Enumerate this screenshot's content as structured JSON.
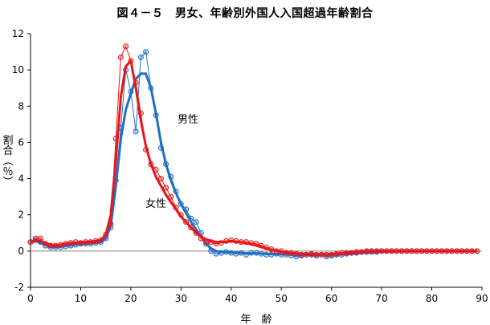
{
  "chart_data": {
    "type": "line",
    "title": "図４－５　男女、年齢別外国人入国超過年齢割合",
    "xlabel": "年　齢",
    "ylabel": "割合（％）",
    "xlim": [
      0,
      90
    ],
    "ylim": [
      -2,
      12
    ],
    "x_ticks": [
      "0",
      "10",
      "20",
      "30",
      "40",
      "50",
      "60",
      "70",
      "80",
      "90"
    ],
    "y_ticks": [
      "-2",
      "0",
      "2",
      "4",
      "6",
      "8",
      "10",
      "12"
    ],
    "annotations": {
      "male": "男性",
      "female": "女性"
    },
    "colors": {
      "male": "#1f6fc5",
      "female": "#e8161b"
    },
    "series": [
      {
        "name": "男性",
        "color": "#1f6fc5",
        "x": [
          0,
          1,
          2,
          3,
          4,
          5,
          6,
          7,
          8,
          9,
          10,
          11,
          12,
          13,
          14,
          15,
          16,
          17,
          18,
          19,
          20,
          21,
          22,
          23,
          24,
          25,
          26,
          27,
          28,
          29,
          30,
          31,
          32,
          33,
          34,
          35,
          36,
          37,
          38,
          39,
          40,
          41,
          42,
          43,
          44,
          45,
          46,
          47,
          48,
          49,
          50,
          51,
          52,
          53,
          54,
          55,
          56,
          57,
          58,
          59,
          60,
          61,
          62,
          63,
          64,
          65,
          66,
          67,
          68,
          69,
          70,
          71,
          72,
          73,
          74,
          75,
          76,
          77,
          78,
          79,
          80,
          81,
          82,
          83,
          84,
          85,
          86,
          87,
          88,
          89
        ],
        "values": [
          0.5,
          0.6,
          0.5,
          0.3,
          0.2,
          0.2,
          0.2,
          0.25,
          0.3,
          0.35,
          0.4,
          0.4,
          0.4,
          0.45,
          0.5,
          0.7,
          1.3,
          3.9,
          6.8,
          10.0,
          8.8,
          6.6,
          10.7,
          11.0,
          9.0,
          7.5,
          5.7,
          4.8,
          4.1,
          3.3,
          2.6,
          2.3,
          1.8,
          1.6,
          1.0,
          0.4,
          0.0,
          -0.15,
          -0.1,
          -0.05,
          -0.1,
          -0.15,
          -0.1,
          -0.2,
          -0.1,
          -0.1,
          -0.15,
          -0.2,
          -0.2,
          -0.15,
          -0.2,
          -0.2,
          -0.25,
          -0.3,
          -0.25,
          -0.2,
          -0.2,
          -0.25,
          -0.2,
          -0.3,
          -0.25,
          -0.2,
          -0.2,
          -0.15,
          -0.1,
          -0.1,
          -0.05,
          -0.05,
          -0.05,
          -0.05,
          0.0,
          0.0,
          0.0,
          0.0,
          0.0,
          0.0,
          0.0,
          0.0,
          0.0,
          0.0,
          0.0,
          0.0,
          0.0,
          0.0,
          0.0,
          0.0,
          0.0,
          0.0,
          0.0,
          0.0
        ],
        "trend": [
          0.5,
          0.55,
          0.45,
          0.35,
          0.25,
          0.22,
          0.24,
          0.28,
          0.32,
          0.36,
          0.38,
          0.4,
          0.42,
          0.46,
          0.5,
          0.7,
          1.4,
          3.6,
          6.2,
          7.8,
          8.7,
          9.5,
          9.8,
          9.8,
          9.0,
          7.6,
          6.0,
          4.8,
          3.9,
          3.2,
          2.6,
          2.1,
          1.6,
          1.2,
          0.8,
          0.4,
          0.15,
          0.0,
          -0.05,
          -0.05,
          -0.08,
          -0.1,
          -0.1,
          -0.12,
          -0.12,
          -0.12,
          -0.14,
          -0.15,
          -0.16,
          -0.17,
          -0.18,
          -0.19,
          -0.2,
          -0.21,
          -0.21,
          -0.21,
          -0.21,
          -0.21,
          -0.21,
          -0.21,
          -0.21,
          -0.2,
          -0.19,
          -0.17,
          -0.15,
          -0.12,
          -0.1,
          -0.08,
          -0.06,
          -0.05,
          -0.04,
          -0.03,
          -0.02,
          -0.01,
          0.0,
          0.0,
          0.0,
          0.0,
          0.0,
          0.0,
          0.0,
          0.0,
          0.0,
          0.0,
          0.0,
          0.0,
          0.0,
          0.0,
          0.0,
          0.0
        ]
      },
      {
        "name": "女性",
        "color": "#e8161b",
        "x": [
          0,
          1,
          2,
          3,
          4,
          5,
          6,
          7,
          8,
          9,
          10,
          11,
          12,
          13,
          14,
          15,
          16,
          17,
          18,
          19,
          20,
          21,
          22,
          23,
          24,
          25,
          26,
          27,
          28,
          29,
          30,
          31,
          32,
          33,
          34,
          35,
          36,
          37,
          38,
          39,
          40,
          41,
          42,
          43,
          44,
          45,
          46,
          47,
          48,
          49,
          50,
          51,
          52,
          53,
          54,
          55,
          56,
          57,
          58,
          59,
          60,
          61,
          62,
          63,
          64,
          65,
          66,
          67,
          68,
          69,
          70,
          71,
          72,
          73,
          74,
          75,
          76,
          77,
          78,
          79,
          80,
          81,
          82,
          83,
          84,
          85,
          86,
          87,
          88,
          89
        ],
        "values": [
          0.5,
          0.7,
          0.7,
          0.4,
          0.3,
          0.3,
          0.35,
          0.4,
          0.45,
          0.5,
          0.45,
          0.5,
          0.5,
          0.55,
          0.6,
          0.9,
          1.5,
          6.2,
          10.7,
          11.3,
          10.5,
          9.3,
          7.6,
          5.6,
          4.8,
          4.5,
          4.0,
          3.5,
          3.0,
          2.4,
          2.0,
          1.6,
          1.3,
          1.0,
          0.7,
          0.5,
          0.5,
          0.4,
          0.45,
          0.55,
          0.6,
          0.55,
          0.5,
          0.5,
          0.45,
          0.4,
          0.3,
          0.2,
          0.1,
          0.0,
          0.0,
          -0.1,
          -0.1,
          -0.15,
          -0.2,
          -0.2,
          -0.15,
          -0.2,
          -0.2,
          -0.2,
          -0.2,
          -0.15,
          -0.1,
          -0.1,
          -0.1,
          -0.05,
          -0.05,
          0.0,
          0.0,
          0.0,
          0.0,
          0.0,
          0.0,
          0.0,
          0.0,
          0.0,
          0.0,
          0.0,
          0.0,
          0.0,
          0.0,
          0.0,
          0.0,
          0.0,
          0.0,
          0.0,
          0.0,
          0.0,
          0.0,
          0.0
        ],
        "trend": [
          0.5,
          0.6,
          0.55,
          0.45,
          0.35,
          0.32,
          0.35,
          0.4,
          0.44,
          0.46,
          0.47,
          0.5,
          0.52,
          0.55,
          0.6,
          0.9,
          2.0,
          5.0,
          8.5,
          10.2,
          10.5,
          9.0,
          7.2,
          5.8,
          4.8,
          4.1,
          3.6,
          3.1,
          2.7,
          2.3,
          1.9,
          1.6,
          1.3,
          1.0,
          0.8,
          0.65,
          0.55,
          0.5,
          0.5,
          0.52,
          0.54,
          0.52,
          0.48,
          0.44,
          0.38,
          0.3,
          0.22,
          0.15,
          0.08,
          0.02,
          -0.03,
          -0.07,
          -0.1,
          -0.13,
          -0.15,
          -0.16,
          -0.17,
          -0.18,
          -0.18,
          -0.18,
          -0.17,
          -0.15,
          -0.12,
          -0.09,
          -0.07,
          -0.05,
          -0.03,
          -0.02,
          -0.01,
          0.0,
          0.0,
          0.0,
          0.0,
          0.0,
          0.0,
          0.0,
          0.0,
          0.0,
          0.0,
          0.0,
          0.0,
          0.0,
          0.0,
          0.0,
          0.0,
          0.0,
          0.0,
          0.0,
          0.0,
          0.0
        ]
      }
    ],
    "grid": false,
    "legend": "none"
  }
}
